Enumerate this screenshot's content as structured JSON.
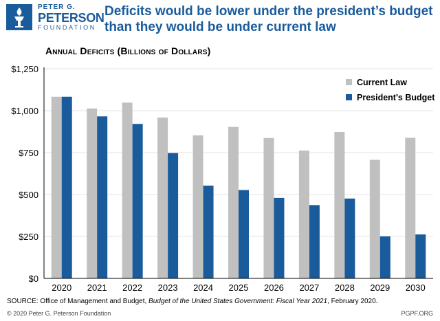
{
  "logo": {
    "line1": "PETER G.",
    "line2": "PETERSON",
    "line3": "FOUNDATION"
  },
  "headline": "Deficits would be lower under the president’s budget than they would be under current law",
  "chart_data": {
    "type": "bar",
    "title": "Annual Deficits (Billions of Dollars)",
    "xlabel": "",
    "ylabel": "",
    "ylim": [
      0,
      1250
    ],
    "yticks": [
      0,
      250,
      500,
      750,
      1000,
      1250
    ],
    "ytick_labels": [
      "$0",
      "$250",
      "$500",
      "$750",
      "$1,000",
      "$1,250"
    ],
    "grid": true,
    "legend_position": "top-right",
    "categories": [
      "2020",
      "2021",
      "2022",
      "2023",
      "2024",
      "2025",
      "2026",
      "2027",
      "2028",
      "2029",
      "2030"
    ],
    "series": [
      {
        "name": "Current Law",
        "color": "#c0c0c0",
        "values": [
          1083,
          1013,
          1048,
          959,
          853,
          903,
          837,
          762,
          873,
          707,
          838
        ]
      },
      {
        "name": "President's Budget",
        "color": "#1a5b9c",
        "values": [
          1083,
          966,
          921,
          747,
          553,
          527,
          480,
          437,
          476,
          251,
          262
        ]
      }
    ]
  },
  "footer": {
    "source_prefix": "SOURCE: Office of Management and Budget, ",
    "source_title": "Budget of the United States Government: Fiscal Year 2021",
    "source_suffix": ", February 2020.",
    "copyright": "© 2020 Peter G. Peterson Foundation",
    "website": "PGPF.ORG"
  }
}
